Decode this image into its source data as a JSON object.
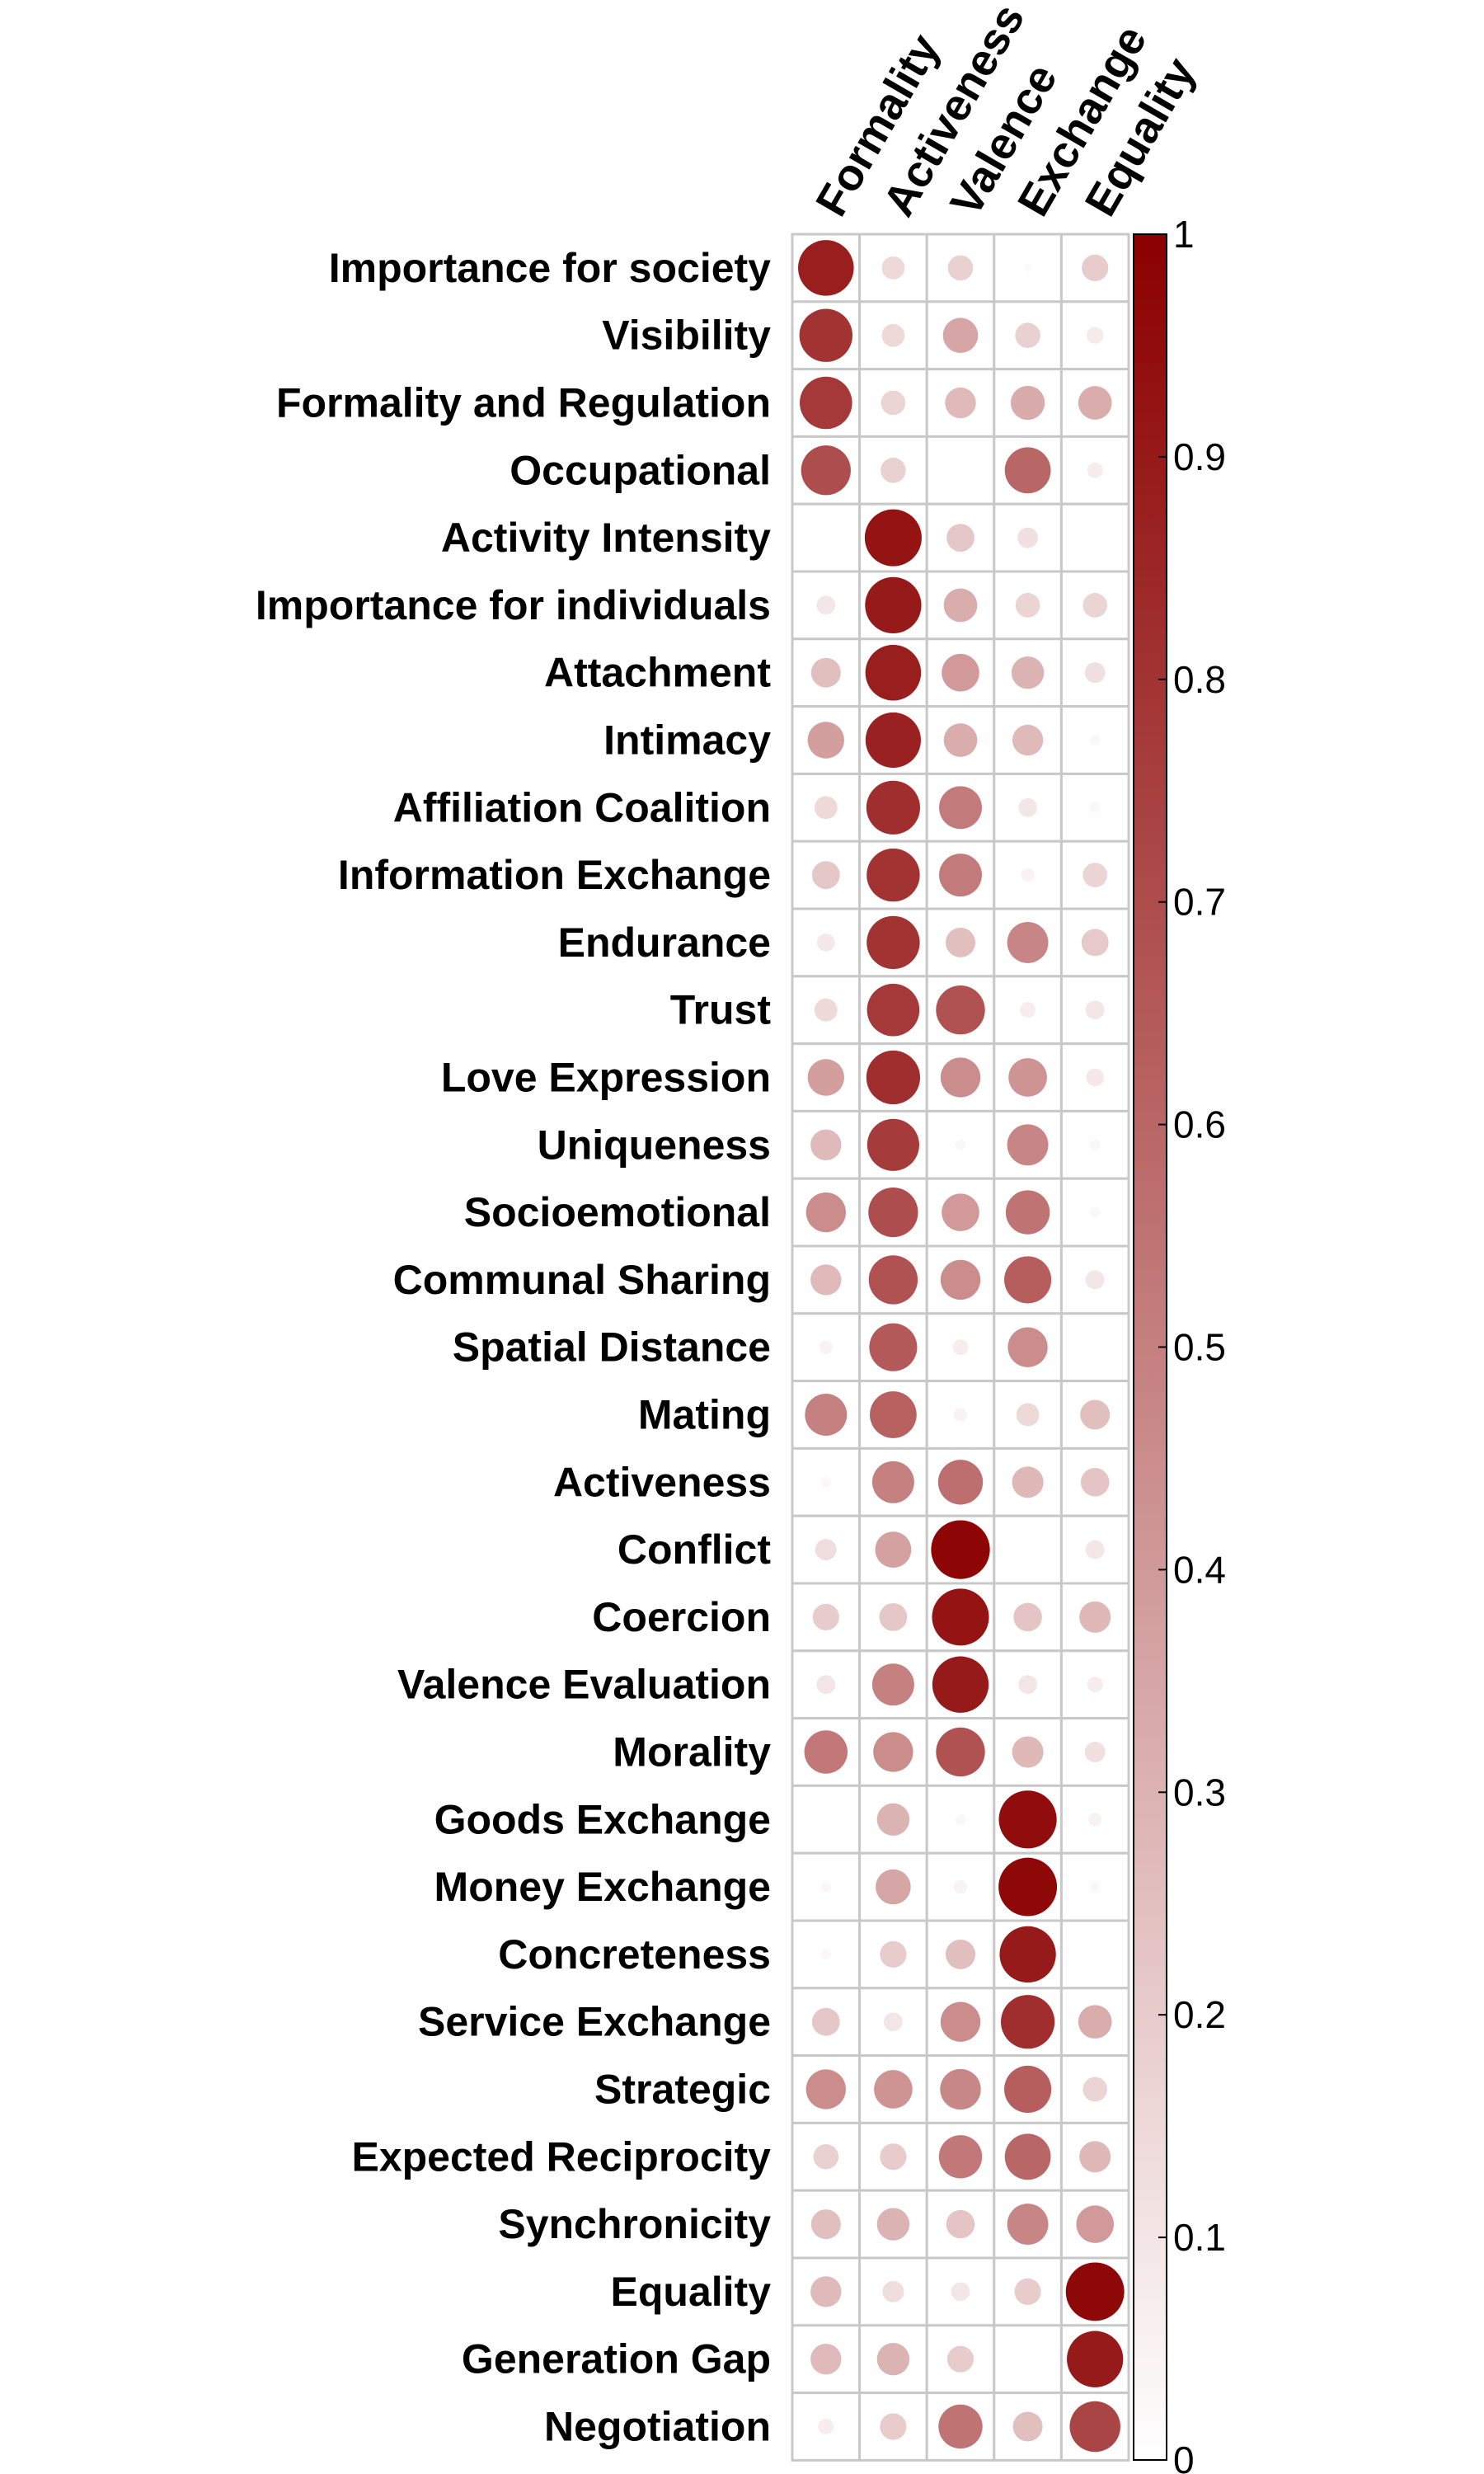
{
  "chart_data": {
    "type": "heatmap",
    "columns": [
      "Formality",
      "Activeness",
      "Valence",
      "Exchange",
      "Equality"
    ],
    "rows": [
      "Importance for society",
      "Visibility",
      "Formality and Regulation",
      "Occupational",
      "Activity Intensity",
      "Importance for individuals",
      "Attachment",
      "Intimacy",
      "Affiliation Coalition",
      "Information Exchange",
      "Endurance",
      "Trust",
      "Love Expression",
      "Uniqueness",
      "Socioemotional",
      "Communal Sharing",
      "Spatial Distance",
      "Mating",
      "Activeness",
      "Conflict",
      "Coercion",
      "Valence Evaluation",
      "Morality",
      "Goods Exchange",
      "Money Exchange",
      "Concreteness",
      "Service Exchange",
      "Strategic",
      "Expected Reciprocity",
      "Synchronicity",
      "Equality",
      "Generation Gap",
      "Negotiation"
    ],
    "values": [
      [
        0.88,
        0.15,
        0.18,
        0.02,
        0.2
      ],
      [
        0.8,
        0.15,
        0.35,
        0.18,
        0.08
      ],
      [
        0.78,
        0.17,
        0.27,
        0.33,
        0.32
      ],
      [
        0.7,
        0.18,
        0.0,
        0.6,
        0.07
      ],
      [
        0.0,
        0.92,
        0.22,
        0.12,
        0.0
      ],
      [
        0.1,
        0.9,
        0.32,
        0.17,
        0.17
      ],
      [
        0.25,
        0.88,
        0.4,
        0.3,
        0.12
      ],
      [
        0.38,
        0.87,
        0.32,
        0.27,
        0.03
      ],
      [
        0.15,
        0.82,
        0.52,
        0.1,
        0.03
      ],
      [
        0.22,
        0.8,
        0.52,
        0.05,
        0.17
      ],
      [
        0.09,
        0.8,
        0.25,
        0.48,
        0.21
      ],
      [
        0.15,
        0.78,
        0.68,
        0.07,
        0.1
      ],
      [
        0.38,
        0.82,
        0.45,
        0.42,
        0.09
      ],
      [
        0.27,
        0.77,
        0.03,
        0.48,
        0.03
      ],
      [
        0.45,
        0.7,
        0.4,
        0.55,
        0.03
      ],
      [
        0.27,
        0.68,
        0.45,
        0.63,
        0.1
      ],
      [
        0.05,
        0.65,
        0.07,
        0.45,
        0.0
      ],
      [
        0.5,
        0.62,
        0.05,
        0.15,
        0.25
      ],
      [
        0.03,
        0.5,
        0.57,
        0.28,
        0.23
      ],
      [
        0.13,
        0.37,
        0.98,
        0.0,
        0.1
      ],
      [
        0.2,
        0.22,
        0.92,
        0.23,
        0.28
      ],
      [
        0.1,
        0.5,
        0.9,
        0.1,
        0.07
      ],
      [
        0.53,
        0.45,
        0.68,
        0.28,
        0.12
      ],
      [
        0.0,
        0.3,
        0.03,
        0.95,
        0.05
      ],
      [
        0.03,
        0.35,
        0.05,
        0.97,
        0.03
      ],
      [
        0.03,
        0.2,
        0.25,
        0.9,
        0.0
      ],
      [
        0.22,
        0.1,
        0.45,
        0.82,
        0.32
      ],
      [
        0.45,
        0.42,
        0.47,
        0.63,
        0.17
      ],
      [
        0.18,
        0.2,
        0.53,
        0.6,
        0.28
      ],
      [
        0.25,
        0.3,
        0.23,
        0.48,
        0.4
      ],
      [
        0.27,
        0.13,
        0.1,
        0.2,
        0.97
      ],
      [
        0.27,
        0.3,
        0.2,
        0.0,
        0.9
      ],
      [
        0.07,
        0.2,
        0.55,
        0.25,
        0.73
      ]
    ],
    "colorbar": {
      "ticks": [
        "0",
        "0.1",
        "0.2",
        "0.3",
        "0.4",
        "0.5",
        "0.6",
        "0.7",
        "0.8",
        "0.9",
        "1"
      ],
      "range": [
        0,
        1
      ],
      "color_low": "#ffffff",
      "color_high": "#8b0000"
    },
    "grid": true
  }
}
